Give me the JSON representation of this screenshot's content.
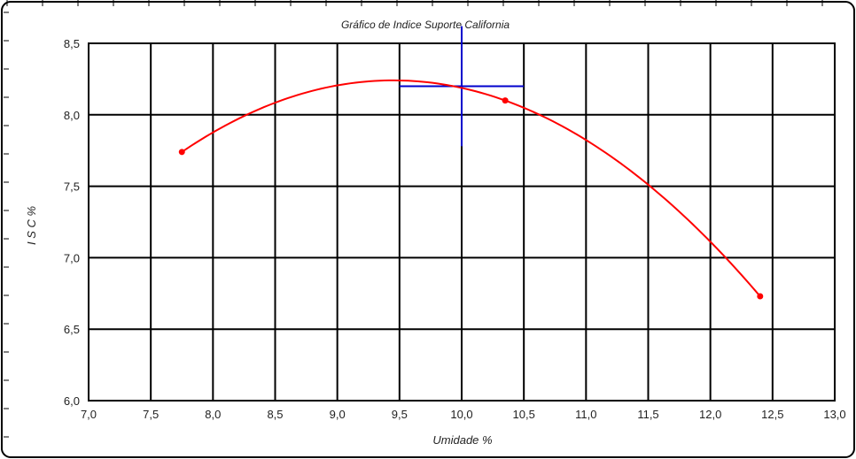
{
  "chart_data": {
    "type": "scatter",
    "title": "Gráfico de   Indice Suporte California",
    "xlabel": "Umidade  %",
    "ylabel": "I S C  %",
    "xlim": [
      7.0,
      13.0
    ],
    "ylim": [
      6.0,
      8.5
    ],
    "x_ticks": [
      "7,0",
      "7,5",
      "8,0",
      "8,5",
      "9,0",
      "9,5",
      "10,0",
      "10,5",
      "11,0",
      "11,5",
      "12,0",
      "12,5",
      "13,0"
    ],
    "y_ticks": [
      "8,5",
      "8,0",
      "7,5",
      "7,0",
      "6,5",
      "6,0"
    ],
    "grid": true,
    "series": [
      {
        "color": "#ff0000",
        "points": [
          {
            "x": 7.75,
            "y": 7.74
          },
          {
            "x": 10.35,
            "y": 8.1
          },
          {
            "x": 12.4,
            "y": 6.73
          }
        ],
        "fit": {
          "type": "quadratic",
          "x_range": [
            7.75,
            12.4
          ]
        }
      }
    ],
    "optimum_marker": {
      "color": "#0000cc",
      "x": 10.0,
      "y": 8.2,
      "x_extent": [
        9.5,
        10.5
      ],
      "y_extent": [
        7.78,
        8.62
      ]
    }
  }
}
